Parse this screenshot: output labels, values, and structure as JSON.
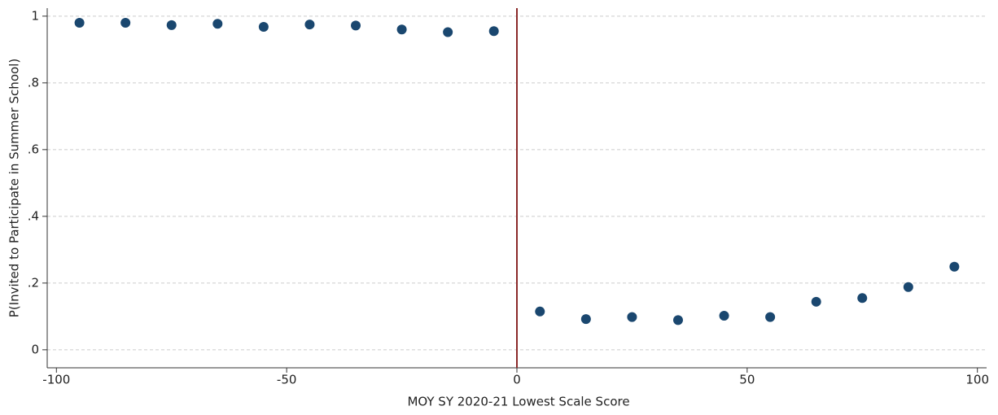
{
  "chart_data": {
    "type": "scatter",
    "xlabel": "MOY SY 2020-21 Lowest Scale Score",
    "ylabel": "P(Invited to Participate in Summer School)",
    "x": [
      -95,
      -85,
      -75,
      -65,
      -55,
      -45,
      -35,
      -25,
      -15,
      -5,
      5,
      15,
      25,
      35,
      45,
      55,
      65,
      75,
      85,
      95
    ],
    "values": [
      0.98,
      0.98,
      0.973,
      0.977,
      0.968,
      0.975,
      0.972,
      0.96,
      0.952,
      0.955,
      0.115,
      0.092,
      0.098,
      0.089,
      0.102,
      0.098,
      0.144,
      0.155,
      0.188,
      0.249
    ],
    "color": "#1a476f",
    "xlim": [
      -102,
      102
    ],
    "ylim": [
      -0.054,
      1.024
    ],
    "xticks": [
      -100,
      -50,
      0,
      50,
      100
    ],
    "yticks": [
      0,
      {
        "value": 0.2,
        "label": ".2"
      },
      {
        "value": 0.4,
        "label": ".4"
      },
      {
        "value": 0.6,
        "label": ".6"
      },
      {
        "value": 0.8,
        "label": ".8"
      },
      1
    ],
    "grid": true,
    "cutoff_line": {
      "x": 0,
      "color": "#8b2a2a"
    }
  }
}
